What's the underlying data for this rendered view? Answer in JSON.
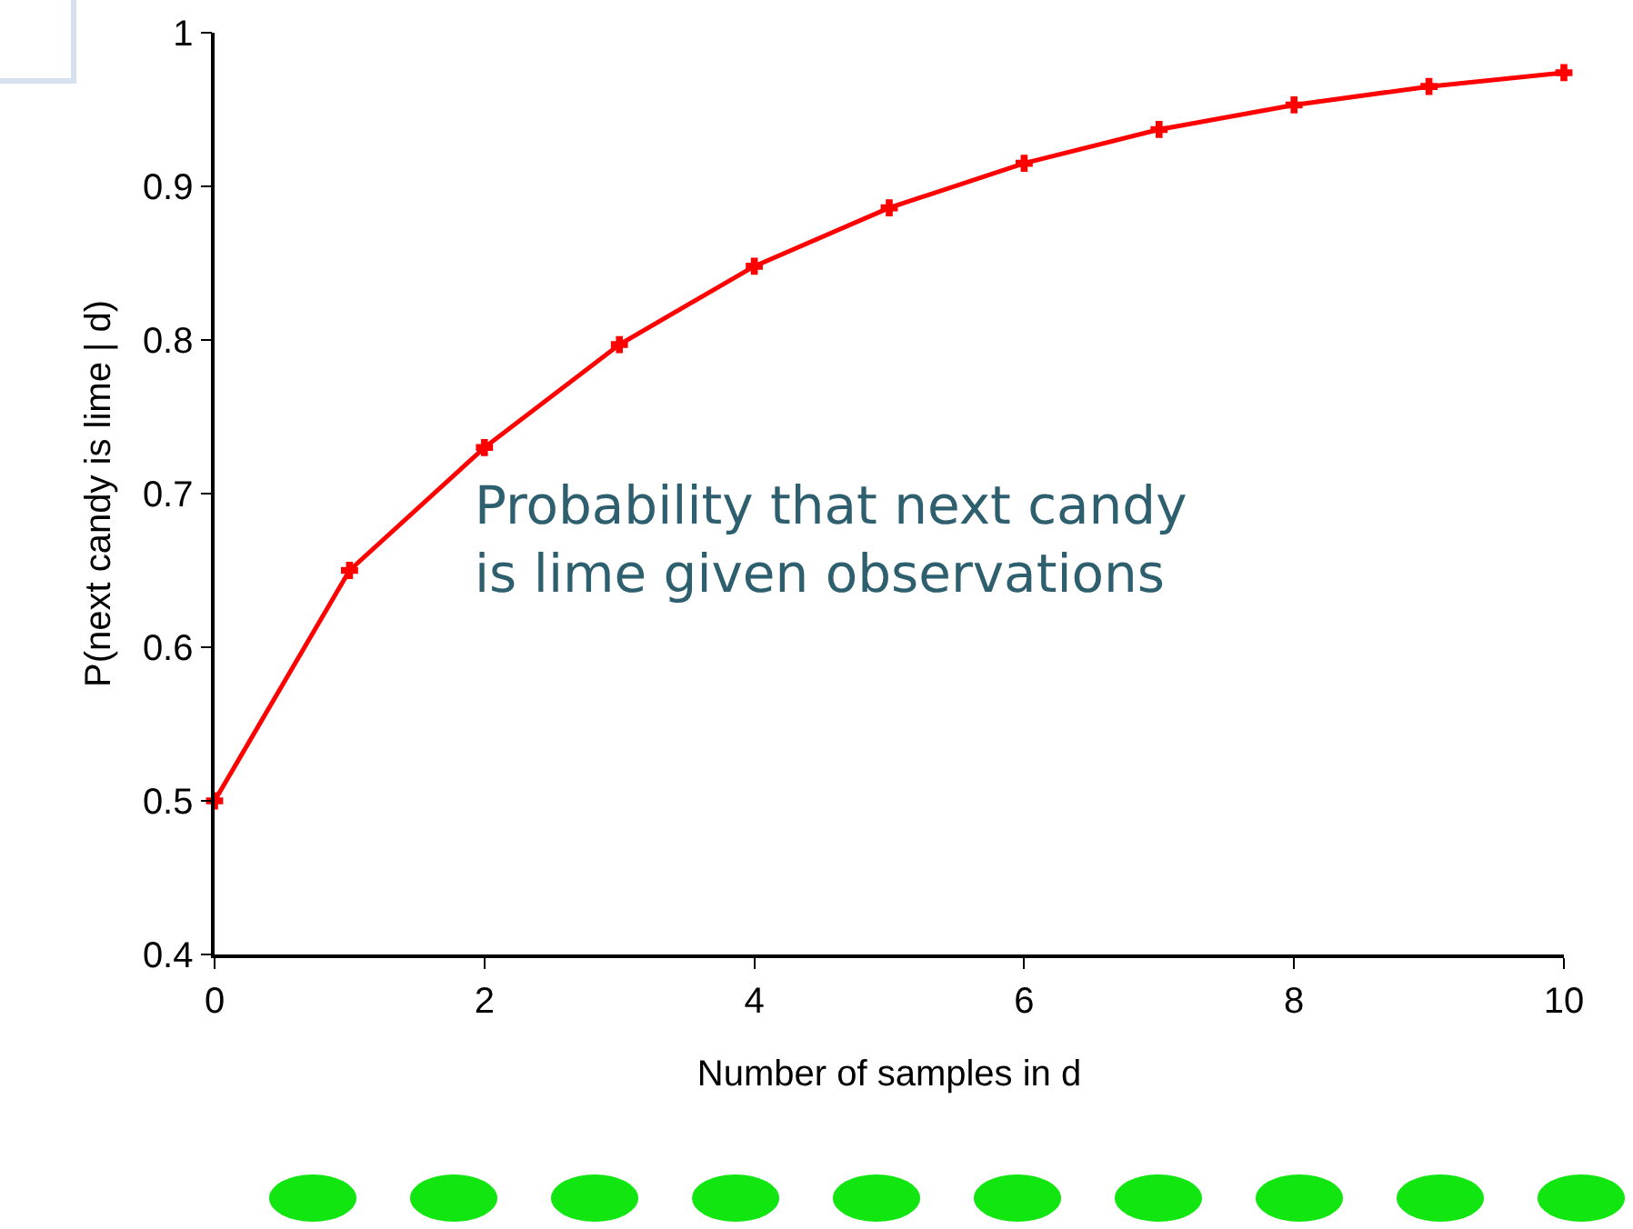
{
  "chart_data": {
    "type": "line",
    "x": [
      0,
      1,
      2,
      3,
      4,
      5,
      6,
      7,
      8,
      9,
      10
    ],
    "series": [
      {
        "color": "#ff0000",
        "values": [
          0.5,
          0.65,
          0.73,
          0.797,
          0.848,
          0.886,
          0.915,
          0.937,
          0.953,
          0.965,
          0.974
        ]
      }
    ],
    "xlim": [
      0,
      10
    ],
    "xticks": [
      0,
      2,
      4,
      6,
      8,
      10
    ],
    "ylim": [
      0.4,
      1
    ],
    "yticks": [
      0.4,
      0.5,
      0.6,
      0.7,
      0.8,
      0.9,
      1
    ],
    "xlabel": "Number of samples in d",
    "ylabel": "P(next candy is lime | d)",
    "annotations": [
      "Probability that next candy\nis lime given observations"
    ],
    "grid": false,
    "marker": "cross",
    "line_style": "solid"
  }
}
